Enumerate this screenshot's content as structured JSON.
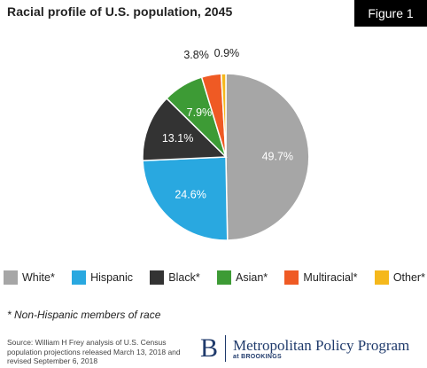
{
  "header": {
    "title": "Racial profile of U.S. population, 2045",
    "figure_label": "Figure 1"
  },
  "chart_data": {
    "type": "pie",
    "title": "Racial profile of U.S. population, 2045",
    "slices": [
      {
        "name": "White*",
        "value": 49.7,
        "label": "49.7%",
        "color": "#a6a6a6"
      },
      {
        "name": "Hispanic",
        "value": 24.6,
        "label": "24.6%",
        "color": "#29a8e0"
      },
      {
        "name": "Black*",
        "value": 13.1,
        "label": "13.1%",
        "color": "#333333"
      },
      {
        "name": "Asian*",
        "value": 7.9,
        "label": "7.9%",
        "color": "#3d9b35"
      },
      {
        "name": "Multiracial*",
        "value": 3.8,
        "label": "3.8%",
        "color": "#ef5a24"
      },
      {
        "name": "Other*",
        "value": 0.9,
        "label": "0.9%",
        "color": "#f5b81c"
      }
    ],
    "legend_position": "bottom"
  },
  "legend": [
    {
      "label": "White*",
      "color": "#a6a6a6"
    },
    {
      "label": "Hispanic",
      "color": "#29a8e0"
    },
    {
      "label": "Black*",
      "color": "#333333"
    },
    {
      "label": "Asian*",
      "color": "#3d9b35"
    },
    {
      "label": "Multiracial*",
      "color": "#ef5a24"
    },
    {
      "label": "Other*",
      "color": "#f5b81c"
    }
  ],
  "note": "* Non-Hispanic members of race",
  "source": "Source: William H Frey analysis of U.S. Census population projections released March 13, 2018 and revised September 6, 2018",
  "logo": {
    "letter": "B",
    "name": "Metropolitan Policy Program",
    "sub": "at BROOKINGS"
  }
}
